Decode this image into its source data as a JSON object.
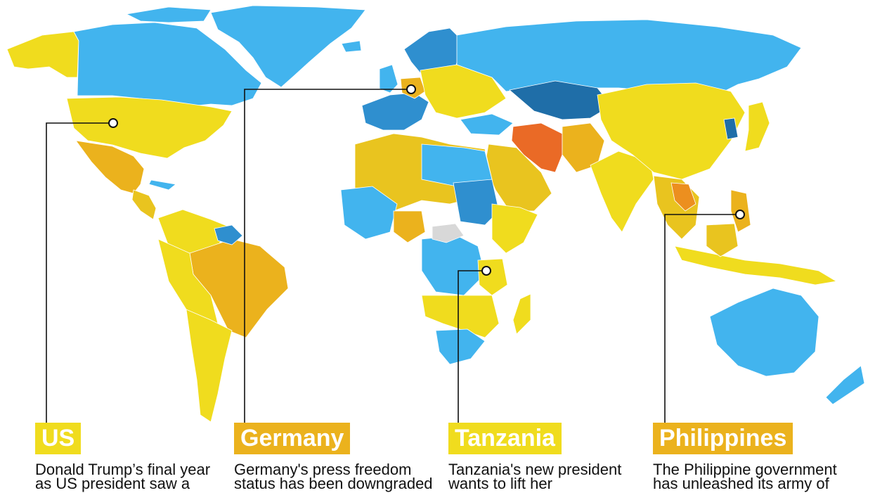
{
  "colors": {
    "background": "#ffffff",
    "free": "#42b4ee",
    "free_dark": "#2f8fcf",
    "darkest_blue": "#1f6ea8",
    "partly_free": "#f0dc1e",
    "partly_free_dark": "#e9c41f",
    "not_free": "#ebb21d",
    "not_free_dark": "#ec8f1f",
    "worst": "#ea6a26",
    "no_data": "#d8d8d8",
    "leader_line": "#111111"
  },
  "callouts": [
    {
      "id": "us",
      "country": "US",
      "tag_color": "#f0dc1e",
      "text_lines": [
        "Donald Trump’s final year",
        "as US president saw a"
      ]
    },
    {
      "id": "germany",
      "country": "Germany",
      "tag_color": "#ebb21d",
      "text_lines": [
        "Germany's press freedom",
        "status has been downgraded"
      ]
    },
    {
      "id": "tanzania",
      "country": "Tanzania",
      "tag_color": "#f0dc1e",
      "text_lines": [
        "Tanzania's new president",
        "wants to lift her"
      ]
    },
    {
      "id": "philippines",
      "country": "Philippines",
      "tag_color": "#ebb21d",
      "text_lines": [
        "The Philippine government",
        "has unleashed its army of"
      ]
    }
  ]
}
